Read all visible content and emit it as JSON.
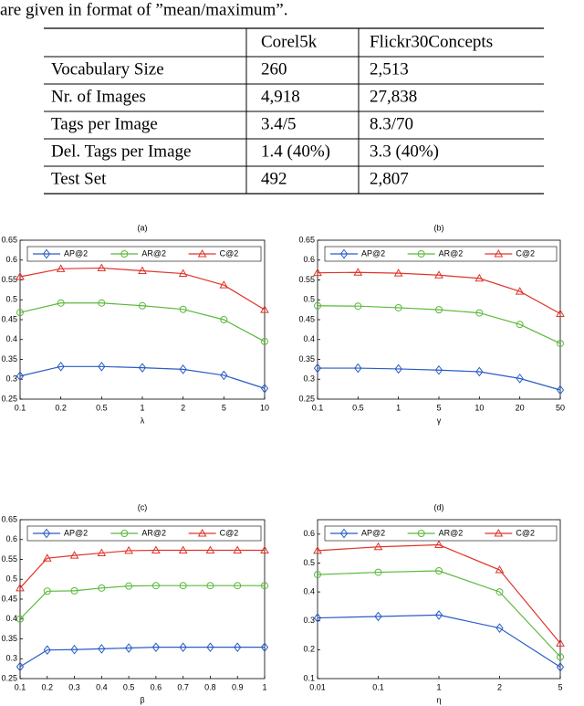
{
  "caption": "are given in format of ”mean/maximum”.",
  "table": {
    "header": [
      "Corel5k",
      "Flickr30Concepts"
    ],
    "rows": [
      [
        "Vocabulary Size",
        "260",
        "2,513"
      ],
      [
        "Nr. of Images",
        "4,918",
        "27,838"
      ],
      [
        "Tags per Image",
        "3.4/5",
        "8.3/70"
      ],
      [
        "Del. Tags per Image",
        "1.4 (40%)",
        "3.3 (40%)"
      ],
      [
        "Test Set",
        "492",
        "2,807"
      ]
    ]
  },
  "chart_data": [
    {
      "type": "line",
      "title": "(a)",
      "x_label": "λ",
      "categories": [
        "0.1",
        "0.2",
        "0.5",
        "1",
        "2",
        "5",
        "10"
      ],
      "ylim": [
        0.25,
        0.65
      ],
      "yticks": [
        0.25,
        0.3,
        0.35,
        0.4,
        0.45,
        0.5,
        0.55,
        0.6,
        0.65
      ],
      "legend": "upper left",
      "series": [
        {
          "name": "AP@2",
          "color": "#2a5cc4",
          "marker": "diamond",
          "values": [
            0.308,
            0.332,
            0.332,
            0.329,
            0.325,
            0.31,
            0.277
          ]
        },
        {
          "name": "AR@2",
          "color": "#5cb83c",
          "marker": "circle",
          "values": [
            0.468,
            0.492,
            0.492,
            0.485,
            0.476,
            0.45,
            0.395
          ]
        },
        {
          "name": "C@2",
          "color": "#e0342a",
          "marker": "triangle",
          "values": [
            0.558,
            0.578,
            0.58,
            0.573,
            0.566,
            0.537,
            0.475
          ]
        }
      ]
    },
    {
      "type": "line",
      "title": "(b)",
      "x_label": "γ",
      "categories": [
        "0.1",
        "0.5",
        "1",
        "5",
        "10",
        "20",
        "50"
      ],
      "ylim": [
        0.25,
        0.65
      ],
      "yticks": [
        0.25,
        0.3,
        0.35,
        0.4,
        0.45,
        0.5,
        0.55,
        0.6,
        0.65
      ],
      "legend": "upper left",
      "series": [
        {
          "name": "AP@2",
          "color": "#2a5cc4",
          "marker": "diamond",
          "values": [
            0.328,
            0.328,
            0.326,
            0.323,
            0.319,
            0.302,
            0.273
          ]
        },
        {
          "name": "AR@2",
          "color": "#5cb83c",
          "marker": "circle",
          "values": [
            0.485,
            0.484,
            0.48,
            0.475,
            0.467,
            0.438,
            0.39
          ]
        },
        {
          "name": "C@2",
          "color": "#e0342a",
          "marker": "triangle",
          "values": [
            0.568,
            0.569,
            0.567,
            0.562,
            0.554,
            0.521,
            0.465
          ]
        }
      ]
    },
    {
      "type": "line",
      "title": "(c)",
      "x_label": "β",
      "categories": [
        "0.1",
        "0.2",
        "0.3",
        "0.4",
        "0.5",
        "0.6",
        "0.7",
        "0.8",
        "0.9",
        "1"
      ],
      "ylim": [
        0.25,
        0.65
      ],
      "yticks": [
        0.25,
        0.3,
        0.35,
        0.4,
        0.45,
        0.5,
        0.55,
        0.6,
        0.65
      ],
      "legend": "upper left",
      "series": [
        {
          "name": "AP@2",
          "color": "#2a5cc4",
          "marker": "diamond",
          "values": [
            0.28,
            0.322,
            0.323,
            0.325,
            0.327,
            0.329,
            0.329,
            0.329,
            0.329,
            0.329
          ]
        },
        {
          "name": "AR@2",
          "color": "#5cb83c",
          "marker": "circle",
          "values": [
            0.4,
            0.47,
            0.471,
            0.478,
            0.483,
            0.484,
            0.484,
            0.484,
            0.484,
            0.484
          ]
        },
        {
          "name": "C@2",
          "color": "#e0342a",
          "marker": "triangle",
          "values": [
            0.478,
            0.553,
            0.56,
            0.566,
            0.572,
            0.573,
            0.573,
            0.573,
            0.573,
            0.573
          ]
        }
      ]
    },
    {
      "type": "line",
      "title": "(d)",
      "x_label": "η",
      "categories": [
        "0.01",
        "0.1",
        "1",
        "2",
        "5"
      ],
      "ylim": [
        0.1,
        0.65
      ],
      "yticks": [
        0.1,
        0.2,
        0.3,
        0.4,
        0.5,
        0.6
      ],
      "legend": "upper left",
      "series": [
        {
          "name": "AP@2",
          "color": "#2a5cc4",
          "marker": "diamond",
          "values": [
            0.31,
            0.315,
            0.32,
            0.275,
            0.14
          ]
        },
        {
          "name": "AR@2",
          "color": "#5cb83c",
          "marker": "circle",
          "values": [
            0.46,
            0.468,
            0.473,
            0.4,
            0.175
          ]
        },
        {
          "name": "C@2",
          "color": "#e0342a",
          "marker": "triangle",
          "values": [
            0.543,
            0.556,
            0.563,
            0.476,
            0.222
          ]
        }
      ]
    }
  ]
}
